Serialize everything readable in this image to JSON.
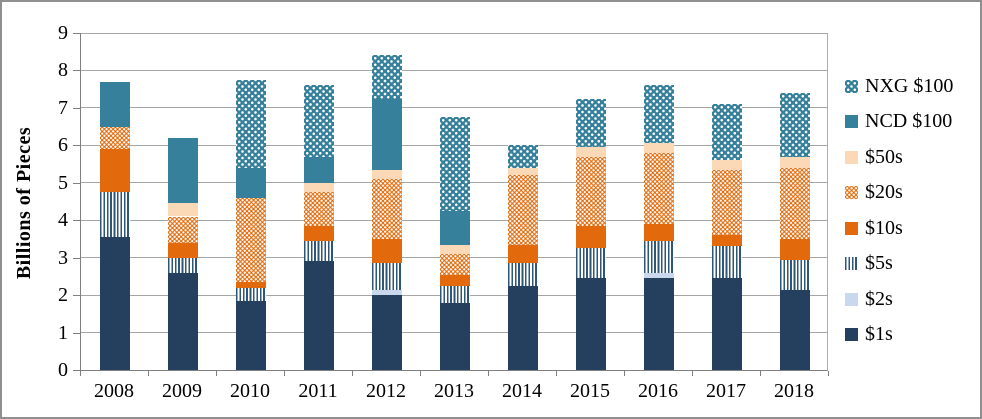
{
  "chart_data": {
    "type": "bar",
    "stacked": true,
    "title": "",
    "xlabel": "",
    "ylabel": "Billions of Pieces",
    "ylim": [
      0,
      9
    ],
    "ytick_interval": 1,
    "ytick_labels": [
      "0",
      "1",
      "2",
      "3",
      "4",
      "5",
      "6",
      "7",
      "8",
      "9"
    ],
    "grid": true,
    "legend_position": "right",
    "categories": [
      "2008",
      "2009",
      "2010",
      "2011",
      "2012",
      "2013",
      "2014",
      "2015",
      "2016",
      "2017",
      "2018"
    ],
    "series": [
      {
        "name": "$1s",
        "color": "#24405E",
        "pattern": "solid",
        "values": [
          3.55,
          2.6,
          1.85,
          2.9,
          2.0,
          1.8,
          2.25,
          2.45,
          2.45,
          2.45,
          2.15
        ]
      },
      {
        "name": "$2s",
        "color": "#C9D8EC",
        "pattern": "solid",
        "values": [
          0,
          0,
          0,
          0,
          0.15,
          0,
          0,
          0,
          0.15,
          0,
          0
        ]
      },
      {
        "name": "$5s",
        "color": "#2E5679",
        "pattern": "vstripes",
        "values": [
          1.2,
          0.4,
          0.35,
          0.55,
          0.7,
          0.45,
          0.6,
          0.8,
          0.85,
          0.85,
          0.8
        ]
      },
      {
        "name": "$10s",
        "color": "#E26A0C",
        "pattern": "solid",
        "values": [
          1.15,
          0.4,
          0.15,
          0.4,
          0.65,
          0.3,
          0.5,
          0.6,
          0.45,
          0.3,
          0.55
        ]
      },
      {
        "name": "$20s",
        "color": "#E26A0C",
        "pattern": "dots-dense",
        "values": [
          0.6,
          0.7,
          2.25,
          0.9,
          1.6,
          0.55,
          1.85,
          1.85,
          1.9,
          1.75,
          1.9
        ]
      },
      {
        "name": "$50s",
        "color": "#FBD9B7",
        "pattern": "solid",
        "values": [
          0,
          0.35,
          0,
          0.25,
          0.25,
          0.25,
          0.2,
          0.25,
          0.25,
          0.25,
          0.3
        ]
      },
      {
        "name": "NCD $100",
        "color": "#36809B",
        "pattern": "solid",
        "values": [
          1.2,
          1.75,
          0.8,
          0.7,
          1.9,
          0.9,
          0,
          0,
          0,
          0,
          0
        ]
      },
      {
        "name": "NXG $100",
        "color": "#36809B",
        "pattern": "dots-sparse",
        "values": [
          0,
          0,
          2.35,
          1.9,
          1.15,
          2.5,
          0.6,
          1.3,
          1.55,
          1.5,
          1.7
        ]
      }
    ],
    "colors": {
      "gridline": "#A6A6A6",
      "axis": "#7F7F7F",
      "frame_border": "#8F8F8F",
      "pattern_foreground": "#FFFFFF"
    }
  }
}
